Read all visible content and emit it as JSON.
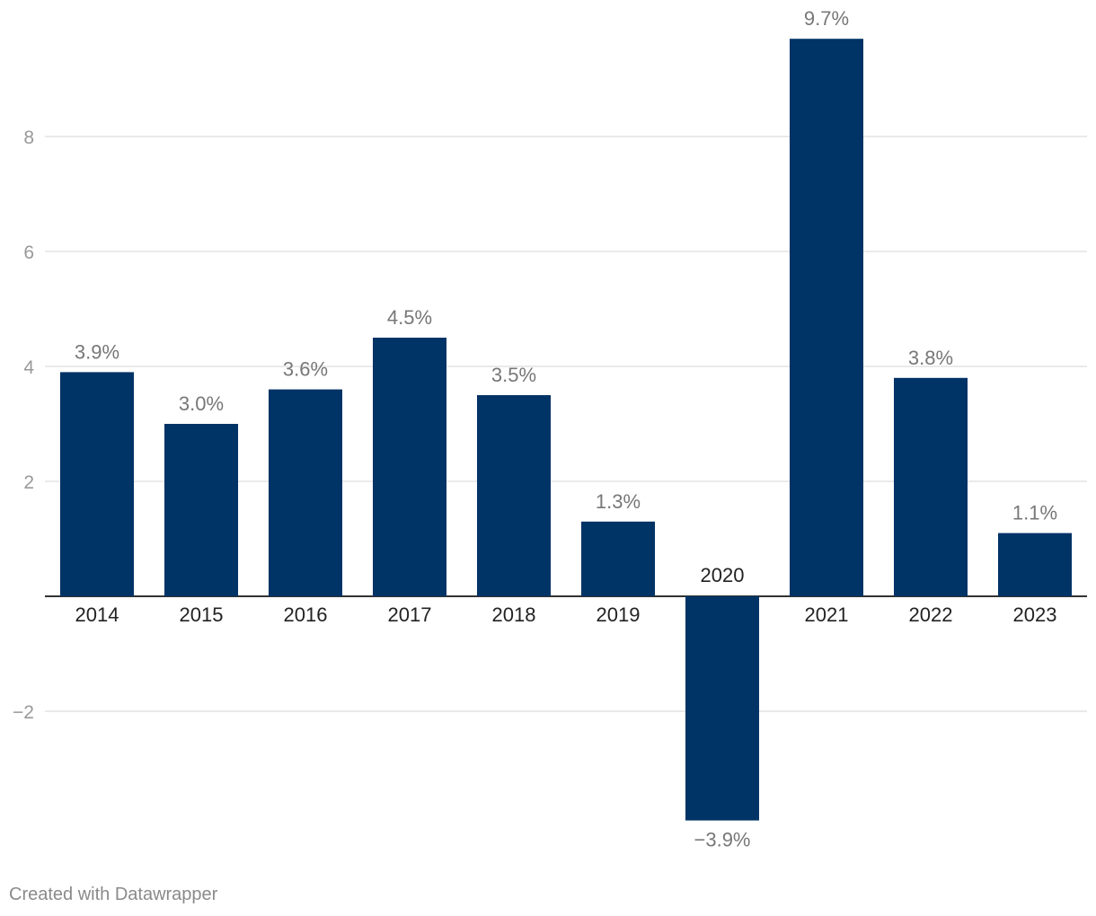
{
  "chart_data": {
    "type": "bar",
    "categories": [
      "2014",
      "2015",
      "2016",
      "2017",
      "2018",
      "2019",
      "2020",
      "2021",
      "2022",
      "2023"
    ],
    "values": [
      3.9,
      3.0,
      3.6,
      4.5,
      3.5,
      1.3,
      -3.9,
      9.7,
      3.8,
      1.1
    ],
    "value_labels": [
      "3.9%",
      "3.0%",
      "3.6%",
      "4.5%",
      "3.5%",
      "1.3%",
      "−3.9%",
      "9.7%",
      "3.8%",
      "1.1%"
    ],
    "y_ticks": [
      -2,
      2,
      4,
      6,
      8
    ],
    "y_tick_labels": [
      "−2",
      "2",
      "4",
      "6",
      "8"
    ],
    "ylim": [
      -3.9,
      9.7
    ],
    "grid": true,
    "title": "",
    "xlabel": "",
    "ylabel": "",
    "colors": {
      "bar": "#003366",
      "grid": "#e3e3e3",
      "baseline": "#333333",
      "tick_label": "#999999",
      "value_label": "#777777",
      "category_label": "#222222"
    }
  },
  "footer": {
    "credit": "Created with Datawrapper"
  }
}
